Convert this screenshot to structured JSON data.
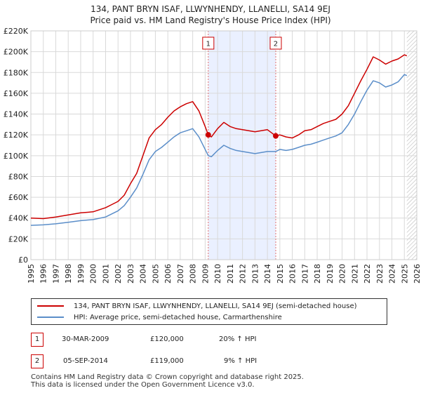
{
  "header": {
    "title": "134, PANT BRYN ISAF, LLWYNHENDY, LLANELLI, SA14 9EJ",
    "subtitle": "Price paid vs. HM Land Registry's House Price Index (HPI)"
  },
  "chart_data": {
    "type": "line",
    "title": "134, PANT BRYN ISAF, LLWYNHENDY, LLANELLI, SA14 9EJ",
    "subtitle": "Price paid vs. HM Land Registry's House Price Index (HPI)",
    "xlabel": "",
    "ylabel": "",
    "xlim": [
      1995,
      2026
    ],
    "ylim": [
      0,
      220000
    ],
    "x_ticks": [
      1995,
      1996,
      1997,
      1998,
      1999,
      2000,
      2001,
      2002,
      2003,
      2004,
      2005,
      2006,
      2007,
      2008,
      2009,
      2010,
      2011,
      2012,
      2013,
      2014,
      2015,
      2016,
      2017,
      2018,
      2019,
      2020,
      2021,
      2022,
      2023,
      2024,
      2025,
      2026
    ],
    "y_ticks": [
      {
        "value": 0,
        "label": "£0"
      },
      {
        "value": 20000,
        "label": "£20K"
      },
      {
        "value": 40000,
        "label": "£40K"
      },
      {
        "value": 60000,
        "label": "£60K"
      },
      {
        "value": 80000,
        "label": "£80K"
      },
      {
        "value": 100000,
        "label": "£100K"
      },
      {
        "value": 120000,
        "label": "£120K"
      },
      {
        "value": 140000,
        "label": "£140K"
      },
      {
        "value": 160000,
        "label": "£160K"
      },
      {
        "value": 180000,
        "label": "£180K"
      },
      {
        "value": 200000,
        "label": "£200K"
      },
      {
        "value": 220000,
        "label": "£220K"
      }
    ],
    "grid": true,
    "shaded_region": {
      "x_start": 2009.25,
      "x_end": 2014.67
    },
    "future_hatch_from": 2025.2,
    "series": [
      {
        "name": "134, PANT BRYN ISAF, LLWYNHENDY, LLANELLI, SA14 9EJ (semi-detached house)",
        "color": "#cc0000",
        "points": [
          [
            1995,
            40000
          ],
          [
            1996,
            39500
          ],
          [
            1997,
            41000
          ],
          [
            1998,
            43000
          ],
          [
            1999,
            45000
          ],
          [
            2000,
            46000
          ],
          [
            2001,
            50000
          ],
          [
            2001.5,
            53000
          ],
          [
            2002,
            56000
          ],
          [
            2002.5,
            62000
          ],
          [
            2003,
            73000
          ],
          [
            2003.5,
            83000
          ],
          [
            2004,
            100000
          ],
          [
            2004.5,
            117000
          ],
          [
            2005,
            125000
          ],
          [
            2005.5,
            130000
          ],
          [
            2006,
            137000
          ],
          [
            2006.5,
            143000
          ],
          [
            2007,
            147000
          ],
          [
            2007.5,
            150000
          ],
          [
            2008,
            152000
          ],
          [
            2008.5,
            143000
          ],
          [
            2009,
            128000
          ],
          [
            2009.25,
            120000
          ],
          [
            2009.5,
            118000
          ],
          [
            2010,
            126000
          ],
          [
            2010.5,
            132000
          ],
          [
            2011,
            128000
          ],
          [
            2011.5,
            126000
          ],
          [
            2012,
            125000
          ],
          [
            2012.5,
            124000
          ],
          [
            2013,
            123000
          ],
          [
            2013.5,
            124000
          ],
          [
            2014,
            125000
          ],
          [
            2014.67,
            119000
          ],
          [
            2015,
            120000
          ],
          [
            2015.5,
            118000
          ],
          [
            2016,
            117000
          ],
          [
            2016.5,
            120000
          ],
          [
            2017,
            124000
          ],
          [
            2017.5,
            125000
          ],
          [
            2018,
            128000
          ],
          [
            2018.5,
            131000
          ],
          [
            2019,
            133000
          ],
          [
            2019.5,
            135000
          ],
          [
            2020,
            140000
          ],
          [
            2020.5,
            148000
          ],
          [
            2021,
            160000
          ],
          [
            2021.5,
            172000
          ],
          [
            2022,
            183000
          ],
          [
            2022.5,
            195000
          ],
          [
            2023,
            192000
          ],
          [
            2023.5,
            188000
          ],
          [
            2024,
            191000
          ],
          [
            2024.5,
            193000
          ],
          [
            2025,
            197000
          ],
          [
            2025.2,
            196000
          ]
        ]
      },
      {
        "name": "HPI: Average price, semi-detached house, Carmarthenshire",
        "color": "#5b8ec9",
        "points": [
          [
            1995,
            33000
          ],
          [
            1996,
            33500
          ],
          [
            1997,
            34500
          ],
          [
            1998,
            36000
          ],
          [
            1999,
            37500
          ],
          [
            2000,
            38500
          ],
          [
            2001,
            41000
          ],
          [
            2001.5,
            44000
          ],
          [
            2002,
            47000
          ],
          [
            2002.5,
            52000
          ],
          [
            2003,
            60000
          ],
          [
            2003.5,
            69000
          ],
          [
            2004,
            82000
          ],
          [
            2004.5,
            96000
          ],
          [
            2005,
            104000
          ],
          [
            2005.5,
            108000
          ],
          [
            2006,
            113000
          ],
          [
            2006.5,
            118000
          ],
          [
            2007,
            122000
          ],
          [
            2007.5,
            124000
          ],
          [
            2008,
            126000
          ],
          [
            2008.5,
            118000
          ],
          [
            2009,
            106000
          ],
          [
            2009.25,
            100000
          ],
          [
            2009.5,
            99000
          ],
          [
            2010,
            105000
          ],
          [
            2010.5,
            110000
          ],
          [
            2011,
            107000
          ],
          [
            2011.5,
            105000
          ],
          [
            2012,
            104000
          ],
          [
            2012.5,
            103000
          ],
          [
            2013,
            102000
          ],
          [
            2013.5,
            103000
          ],
          [
            2014,
            104000
          ],
          [
            2014.67,
            104000
          ],
          [
            2015,
            106000
          ],
          [
            2015.5,
            105000
          ],
          [
            2016,
            106000
          ],
          [
            2016.5,
            108000
          ],
          [
            2017,
            110000
          ],
          [
            2017.5,
            111000
          ],
          [
            2018,
            113000
          ],
          [
            2018.5,
            115000
          ],
          [
            2019,
            117000
          ],
          [
            2019.5,
            119000
          ],
          [
            2020,
            122000
          ],
          [
            2020.5,
            130000
          ],
          [
            2021,
            140000
          ],
          [
            2021.5,
            152000
          ],
          [
            2022,
            163000
          ],
          [
            2022.5,
            172000
          ],
          [
            2023,
            170000
          ],
          [
            2023.5,
            166000
          ],
          [
            2024,
            168000
          ],
          [
            2024.5,
            171000
          ],
          [
            2025,
            178000
          ],
          [
            2025.2,
            177000
          ]
        ]
      }
    ],
    "sales": [
      {
        "label": "1",
        "x": 2009.25,
        "y": 120000
      },
      {
        "label": "2",
        "x": 2014.67,
        "y": 119000
      }
    ]
  },
  "legend": {
    "items": [
      {
        "label": "134, PANT BRYN ISAF, LLWYNHENDY, LLANELLI, SA14 9EJ (semi-detached house)",
        "color": "#cc0000"
      },
      {
        "label": "HPI: Average price, semi-detached house, Carmarthenshire",
        "color": "#5b8ec9"
      }
    ]
  },
  "table": {
    "rows": [
      {
        "num": "1",
        "date": "30-MAR-2009",
        "price": "£120,000",
        "hpi": "20% ↑ HPI"
      },
      {
        "num": "2",
        "date": "05-SEP-2014",
        "price": "£119,000",
        "hpi": "9% ↑ HPI"
      }
    ]
  },
  "footer": {
    "line1": "Contains HM Land Registry data © Crown copyright and database right 2025.",
    "line2": "This data is licensed under the Open Government Licence v3.0."
  }
}
